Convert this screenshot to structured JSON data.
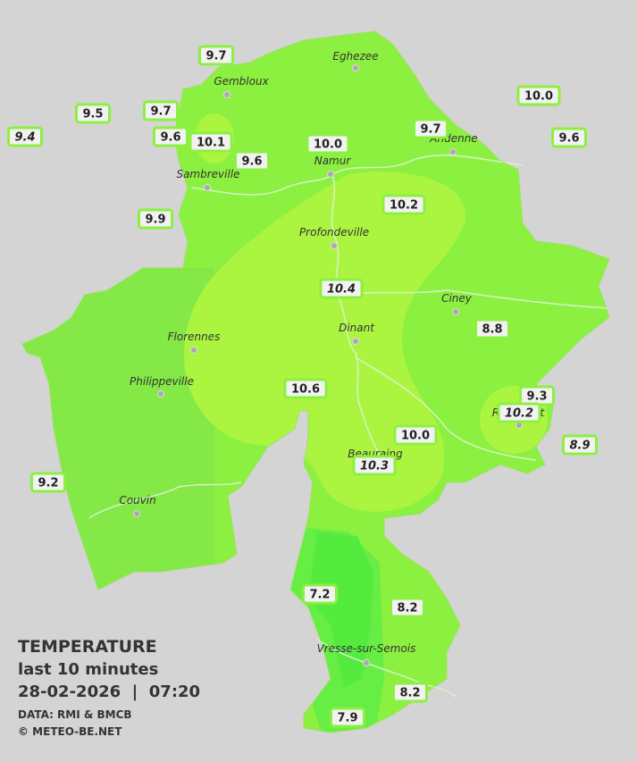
{
  "legend": {
    "title": "TEMPERATURE",
    "subtitle": "last 10 minutes",
    "datetime": "28-02-2026  |  07:20",
    "source": "DATA: RMI & BMCB",
    "copyright": "© METEO-BE.NET"
  },
  "towns": [
    "Eghezee",
    "Gembloux",
    "Andenne",
    "Namur",
    "Sambreville",
    "Profondeville",
    "Ciney",
    "Dinant",
    "Florennes",
    "Philippeville",
    "Rochefort",
    "Beauraing",
    "Couvin",
    "Vresse-sur-Semois"
  ],
  "readings": [
    {
      "value": "9.7",
      "italic": false
    },
    {
      "value": "9.5",
      "italic": false
    },
    {
      "value": "9.4",
      "italic": true
    },
    {
      "value": "9.7",
      "italic": false
    },
    {
      "value": "9.6",
      "italic": false
    },
    {
      "value": "10.1",
      "italic": false
    },
    {
      "value": "9.6",
      "italic": false
    },
    {
      "value": "10.0",
      "italic": false
    },
    {
      "value": "9.7",
      "italic": false
    },
    {
      "value": "10.0",
      "italic": false
    },
    {
      "value": "9.6",
      "italic": false
    },
    {
      "value": "9.9",
      "italic": false
    },
    {
      "value": "10.2",
      "italic": false
    },
    {
      "value": "10.4",
      "italic": true
    },
    {
      "value": "8.8",
      "italic": false
    },
    {
      "value": "10.6",
      "italic": false
    },
    {
      "value": "9.3",
      "italic": false
    },
    {
      "value": "10.2",
      "italic": true
    },
    {
      "value": "10.0",
      "italic": false
    },
    {
      "value": "10.3",
      "italic": true
    },
    {
      "value": "8.9",
      "italic": true
    },
    {
      "value": "9.2",
      "italic": false
    },
    {
      "value": "7.2",
      "italic": false
    },
    {
      "value": "8.2",
      "italic": false
    },
    {
      "value": "8.2",
      "italic": false
    },
    {
      "value": "7.9",
      "italic": false
    }
  ]
}
